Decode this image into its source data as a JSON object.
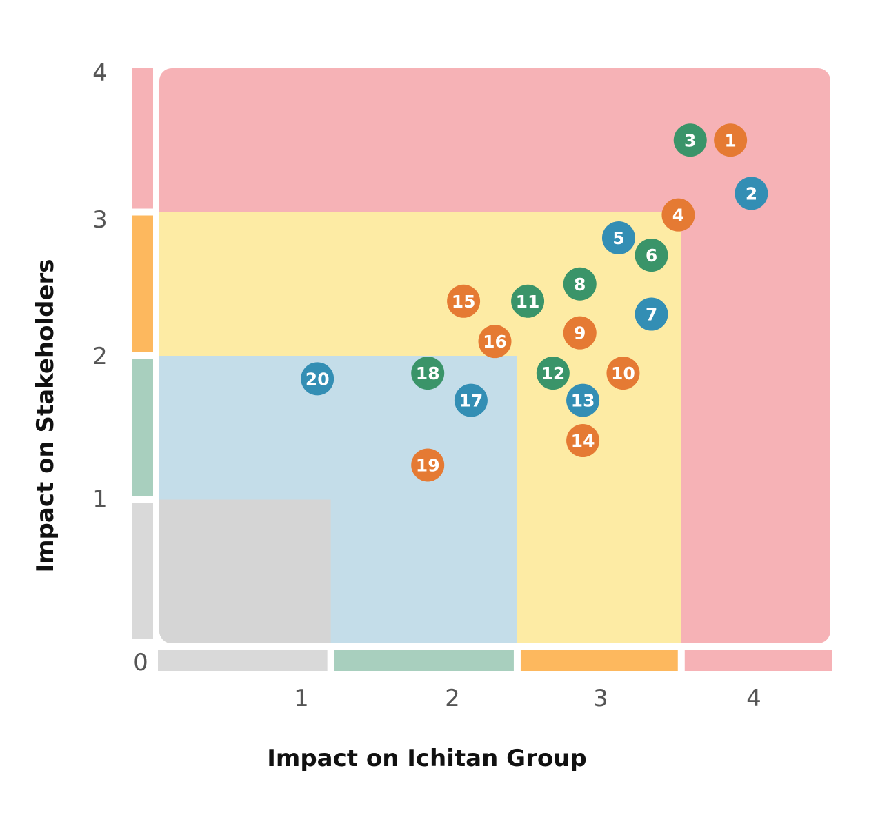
{
  "chart_data": {
    "type": "scatter",
    "xlabel": "Impact on Ichitan Group",
    "ylabel": "Impact on Stakeholders",
    "xlim": [
      0,
      4.5
    ],
    "ylim": [
      0,
      4
    ],
    "x_ticks": [
      "1",
      "2",
      "3",
      "4"
    ],
    "y_ticks": [
      "0",
      "1",
      "2",
      "3",
      "4"
    ],
    "zones": [
      {
        "name": "very-high",
        "color": "#F6B2B6",
        "x_max": 4.5,
        "y_max": 4
      },
      {
        "name": "high",
        "color": "#FDEBA4",
        "x_max": 3.5,
        "y_max": 3
      },
      {
        "name": "medium",
        "color": "#C4DDE9",
        "x_max": 2.4,
        "y_max": 2
      },
      {
        "name": "low",
        "color": "#D5D5D5",
        "x_max": 1.15,
        "y_max": 1
      }
    ],
    "band_colors": {
      "low": "#D9D9D9",
      "medium": "#A8CFBE",
      "high": "#FDB85E",
      "very-high": "#F6B2B6"
    },
    "group_colors": {
      "orange": "#E57A33",
      "blue": "#338EB4",
      "green": "#3A9469"
    },
    "points": [
      {
        "label": "1",
        "x": 3.83,
        "y": 3.5,
        "group": "orange"
      },
      {
        "label": "2",
        "x": 3.97,
        "y": 3.13,
        "group": "blue"
      },
      {
        "label": "3",
        "x": 3.56,
        "y": 3.5,
        "group": "green"
      },
      {
        "label": "4",
        "x": 3.48,
        "y": 2.98,
        "group": "orange"
      },
      {
        "label": "5",
        "x": 3.08,
        "y": 2.82,
        "group": "blue"
      },
      {
        "label": "6",
        "x": 3.3,
        "y": 2.7,
        "group": "green"
      },
      {
        "label": "7",
        "x": 3.3,
        "y": 2.29,
        "group": "blue"
      },
      {
        "label": "8",
        "x": 2.82,
        "y": 2.5,
        "group": "green"
      },
      {
        "label": "9",
        "x": 2.82,
        "y": 2.16,
        "group": "orange"
      },
      {
        "label": "10",
        "x": 3.11,
        "y": 1.88,
        "group": "orange"
      },
      {
        "label": "11",
        "x": 2.47,
        "y": 2.38,
        "group": "green"
      },
      {
        "label": "12",
        "x": 2.64,
        "y": 1.88,
        "group": "green"
      },
      {
        "label": "13",
        "x": 2.84,
        "y": 1.69,
        "group": "blue"
      },
      {
        "label": "14",
        "x": 2.84,
        "y": 1.41,
        "group": "orange"
      },
      {
        "label": "15",
        "x": 2.04,
        "y": 2.38,
        "group": "orange"
      },
      {
        "label": "16",
        "x": 2.25,
        "y": 2.1,
        "group": "orange"
      },
      {
        "label": "17",
        "x": 2.09,
        "y": 1.69,
        "group": "blue"
      },
      {
        "label": "18",
        "x": 1.8,
        "y": 1.88,
        "group": "green"
      },
      {
        "label": "19",
        "x": 1.8,
        "y": 1.24,
        "group": "orange"
      },
      {
        "label": "20",
        "x": 1.06,
        "y": 1.84,
        "group": "blue"
      }
    ]
  }
}
